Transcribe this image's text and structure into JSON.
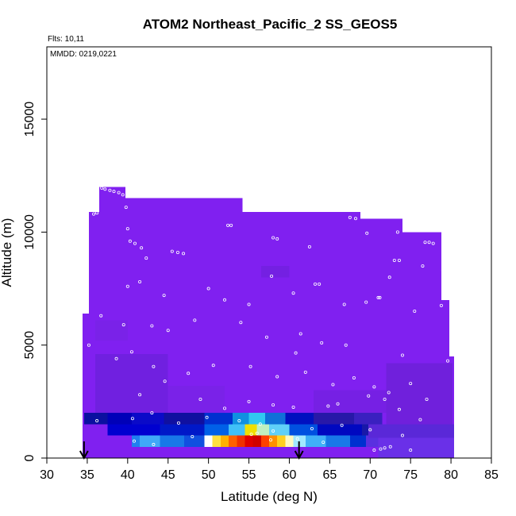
{
  "chart_data": {
    "type": "heatmap",
    "title": "ATOM2 Northeast_Pacific_2 SS_GEOS5",
    "flights_note": "Flts: 10,11",
    "dates_note": "MMDD: 0219,0221",
    "xlabel": "Latitude (deg N)",
    "ylabel": "Altitude (m)",
    "xlim": [
      30,
      85
    ],
    "ylim": [
      0,
      18200
    ],
    "x_ticks": [
      30,
      35,
      40,
      45,
      50,
      55,
      60,
      65,
      70,
      75,
      80,
      85
    ],
    "y_ticks": [
      0,
      5000,
      10000,
      15000
    ],
    "x_tick_labels": [
      "30",
      "35",
      "40",
      "45",
      "50",
      "55",
      "60",
      "65",
      "70",
      "75",
      "80",
      "85"
    ],
    "y_tick_labels": [
      "0",
      "5000",
      "10000",
      "15000"
    ],
    "arrow_latitudes": [
      34.6,
      61.2
    ],
    "background_color": "#8020f0",
    "domain_columns": [
      {
        "x0": 34.4,
        "x1": 35.2,
        "top": 6400
      },
      {
        "x0": 35.2,
        "x1": 36.5,
        "top": 10900
      },
      {
        "x0": 36.5,
        "x1": 39.7,
        "top": 12000
      },
      {
        "x0": 39.7,
        "x1": 54.2,
        "top": 11500
      },
      {
        "x0": 54.2,
        "x1": 68.8,
        "top": 10900
      },
      {
        "x0": 68.8,
        "x1": 74.0,
        "top": 10600
      },
      {
        "x0": 74.0,
        "x1": 78.8,
        "top": 10000
      },
      {
        "x0": 78.8,
        "x1": 79.8,
        "top": 7000
      },
      {
        "x0": 79.8,
        "x1": 80.4,
        "top": 4500
      }
    ],
    "low_layer_cells": [
      {
        "x0": 34.6,
        "x1": 37.5,
        "y0": 1500,
        "y1": 2000,
        "color": "#0a10a0"
      },
      {
        "x0": 37.5,
        "x1": 40.5,
        "y0": 1500,
        "y1": 2000,
        "color": "#0000b8"
      },
      {
        "x0": 40.5,
        "x1": 44.5,
        "y0": 1500,
        "y1": 2000,
        "color": "#0a0ac8"
      },
      {
        "x0": 44.5,
        "x1": 49.5,
        "y0": 1500,
        "y1": 2000,
        "color": "#1010a0"
      },
      {
        "x0": 49.5,
        "x1": 53.0,
        "y0": 1500,
        "y1": 2000,
        "color": "#0030d0"
      },
      {
        "x0": 53.0,
        "x1": 55.0,
        "y0": 1500,
        "y1": 2000,
        "color": "#1090e0"
      },
      {
        "x0": 55.0,
        "x1": 57.0,
        "y0": 1500,
        "y1": 2000,
        "color": "#30c8f0"
      },
      {
        "x0": 57.0,
        "x1": 59.5,
        "y0": 1500,
        "y1": 2000,
        "color": "#1070d8"
      },
      {
        "x0": 59.5,
        "x1": 63.0,
        "y0": 1500,
        "y1": 2000,
        "color": "#0010c0"
      },
      {
        "x0": 63.0,
        "x1": 68.0,
        "y0": 1500,
        "y1": 2000,
        "color": "#2818a8"
      },
      {
        "x0": 68.0,
        "x1": 71.5,
        "y0": 1500,
        "y1": 2000,
        "color": "#3a20c0"
      },
      {
        "x0": 37.5,
        "x1": 44.0,
        "y0": 1000,
        "y1": 1500,
        "color": "#0000d0"
      },
      {
        "x0": 44.0,
        "x1": 49.5,
        "y0": 1000,
        "y1": 1500,
        "color": "#0018c8"
      },
      {
        "x0": 49.5,
        "x1": 52.5,
        "y0": 1000,
        "y1": 1500,
        "color": "#0060e8"
      },
      {
        "x0": 52.5,
        "x1": 54.5,
        "y0": 1000,
        "y1": 1500,
        "color": "#40c0f8"
      },
      {
        "x0": 54.5,
        "x1": 56.0,
        "y0": 1000,
        "y1": 1500,
        "color": "#f0e000"
      },
      {
        "x0": 56.0,
        "x1": 57.5,
        "y0": 1000,
        "y1": 1500,
        "color": "#c0f0c0"
      },
      {
        "x0": 57.5,
        "x1": 60.0,
        "y0": 1000,
        "y1": 1500,
        "color": "#60d0f8"
      },
      {
        "x0": 60.0,
        "x1": 63.5,
        "y0": 1000,
        "y1": 1500,
        "color": "#0050e0"
      },
      {
        "x0": 63.5,
        "x1": 69.0,
        "y0": 1000,
        "y1": 1500,
        "color": "#0008c0"
      },
      {
        "x0": 69.0,
        "x1": 72.0,
        "y0": 1000,
        "y1": 1500,
        "color": "#1818a8"
      },
      {
        "x0": 40.5,
        "x1": 41.5,
        "y0": 500,
        "y1": 1000,
        "color": "#2080f0"
      },
      {
        "x0": 41.5,
        "x1": 44.0,
        "y0": 500,
        "y1": 1000,
        "color": "#40a8f8"
      },
      {
        "x0": 44.0,
        "x1": 47.0,
        "y0": 500,
        "y1": 1000,
        "color": "#1878e8"
      },
      {
        "x0": 47.0,
        "x1": 49.5,
        "y0": 500,
        "y1": 1000,
        "color": "#1050e0"
      },
      {
        "x0": 49.5,
        "x1": 50.5,
        "y0": 500,
        "y1": 1000,
        "color": "#ffffff"
      },
      {
        "x0": 50.5,
        "x1": 51.5,
        "y0": 500,
        "y1": 1000,
        "color": "#ffe040"
      },
      {
        "x0": 51.5,
        "x1": 52.5,
        "y0": 500,
        "y1": 1000,
        "color": "#ffb000"
      },
      {
        "x0": 52.5,
        "x1": 53.5,
        "y0": 500,
        "y1": 1000,
        "color": "#ff6000"
      },
      {
        "x0": 53.5,
        "x1": 54.5,
        "y0": 500,
        "y1": 1000,
        "color": "#f03000"
      },
      {
        "x0": 54.5,
        "x1": 55.5,
        "y0": 500,
        "y1": 1000,
        "color": "#e00000"
      },
      {
        "x0": 55.5,
        "x1": 56.5,
        "y0": 500,
        "y1": 1000,
        "color": "#d00000"
      },
      {
        "x0": 56.5,
        "x1": 57.5,
        "y0": 500,
        "y1": 1000,
        "color": "#ff4000"
      },
      {
        "x0": 57.5,
        "x1": 58.5,
        "y0": 500,
        "y1": 1000,
        "color": "#ff9000"
      },
      {
        "x0": 58.5,
        "x1": 59.5,
        "y0": 500,
        "y1": 1000,
        "color": "#ffd020"
      },
      {
        "x0": 59.5,
        "x1": 60.5,
        "y0": 500,
        "y1": 1000,
        "color": "#fff8c0"
      },
      {
        "x0": 60.5,
        "x1": 62.0,
        "y0": 500,
        "y1": 1000,
        "color": "#a0e8ff"
      },
      {
        "x0": 62.0,
        "x1": 64.5,
        "y0": 500,
        "y1": 1000,
        "color": "#40b0f8"
      },
      {
        "x0": 64.5,
        "x1": 67.5,
        "y0": 500,
        "y1": 1000,
        "color": "#1878e8"
      },
      {
        "x0": 67.5,
        "x1": 69.5,
        "y0": 500,
        "y1": 1000,
        "color": "#0030d0"
      },
      {
        "x0": 69.5,
        "x1": 71.0,
        "y0": 500,
        "y1": 1000,
        "color": "#5a30e0"
      },
      {
        "x0": 71.0,
        "x1": 80.4,
        "y0": 0,
        "y1": 900,
        "color": "#6a30e8"
      },
      {
        "x0": 69.8,
        "x1": 80.4,
        "y0": 900,
        "y1": 1500,
        "color": "#5a28d8"
      }
    ],
    "mid_shade_cells": [
      {
        "x0": 36.0,
        "x1": 45.0,
        "y0": 2000,
        "y1": 4600,
        "color": "#7020e0"
      },
      {
        "x0": 45.0,
        "x1": 52.0,
        "y0": 2000,
        "y1": 3200,
        "color": "#7a22e8"
      },
      {
        "x0": 63.0,
        "x1": 72.0,
        "y0": 2000,
        "y1": 3000,
        "color": "#7620e4"
      },
      {
        "x0": 72.0,
        "x1": 80.2,
        "y0": 1500,
        "y1": 4200,
        "color": "#7020dc"
      },
      {
        "x0": 36.0,
        "x1": 40.0,
        "y0": 5200,
        "y1": 6100,
        "color": "#7a22e8"
      },
      {
        "x0": 56.5,
        "x1": 60.0,
        "y0": 8000,
        "y1": 8500,
        "color": "#7420e2"
      }
    ],
    "sample_points": [
      [
        36.8,
        11950
      ],
      [
        37.2,
        11900
      ],
      [
        37.8,
        11850
      ],
      [
        38.3,
        11800
      ],
      [
        38.9,
        11750
      ],
      [
        39.4,
        11650
      ],
      [
        36.2,
        10850
      ],
      [
        35.8,
        10800
      ],
      [
        39.8,
        11100
      ],
      [
        40.0,
        10150
      ],
      [
        40.3,
        9600
      ],
      [
        40.9,
        9500
      ],
      [
        41.7,
        9300
      ],
      [
        42.3,
        8850
      ],
      [
        45.5,
        9150
      ],
      [
        46.2,
        9100
      ],
      [
        46.9,
        9050
      ],
      [
        52.4,
        10300
      ],
      [
        52.8,
        10300
      ],
      [
        58.0,
        9750
      ],
      [
        58.5,
        9700
      ],
      [
        62.5,
        9350
      ],
      [
        67.5,
        10650
      ],
      [
        68.2,
        10600
      ],
      [
        69.6,
        9950
      ],
      [
        73.4,
        10000
      ],
      [
        76.8,
        9550
      ],
      [
        77.3,
        9550
      ],
      [
        77.8,
        9500
      ],
      [
        73.0,
        8750
      ],
      [
        73.6,
        8750
      ],
      [
        72.4,
        8000
      ],
      [
        76.5,
        8500
      ],
      [
        79.0,
        8300
      ],
      [
        40.0,
        7600
      ],
      [
        41.5,
        7800
      ],
      [
        44.5,
        7200
      ],
      [
        50.0,
        7500
      ],
      [
        52.0,
        7000
      ],
      [
        55.0,
        6800
      ],
      [
        57.8,
        8050
      ],
      [
        60.5,
        7300
      ],
      [
        63.2,
        7700
      ],
      [
        63.7,
        7700
      ],
      [
        66.8,
        6800
      ],
      [
        69.5,
        6900
      ],
      [
        71.0,
        7100
      ],
      [
        71.2,
        7100
      ],
      [
        75.5,
        6500
      ],
      [
        78.8,
        6750
      ],
      [
        36.7,
        6300
      ],
      [
        39.5,
        5900
      ],
      [
        43.0,
        5850
      ],
      [
        45.0,
        5650
      ],
      [
        48.3,
        6100
      ],
      [
        54.0,
        6000
      ],
      [
        57.2,
        5350
      ],
      [
        61.4,
        5500
      ],
      [
        64.0,
        5100
      ],
      [
        67.0,
        5000
      ],
      [
        74.0,
        4550
      ],
      [
        79.6,
        4300
      ],
      [
        35.2,
        5000
      ],
      [
        38.6,
        4400
      ],
      [
        40.5,
        4700
      ],
      [
        43.2,
        4050
      ],
      [
        47.5,
        3750
      ],
      [
        50.6,
        4100
      ],
      [
        55.2,
        4050
      ],
      [
        58.5,
        3600
      ],
      [
        60.8,
        4650
      ],
      [
        62.0,
        3800
      ],
      [
        65.4,
        3250
      ],
      [
        68.0,
        3550
      ],
      [
        70.5,
        3150
      ],
      [
        72.3,
        2900
      ],
      [
        75.0,
        3300
      ],
      [
        77.0,
        2600
      ],
      [
        41.5,
        2800
      ],
      [
        44.6,
        3400
      ],
      [
        49.0,
        2600
      ],
      [
        52.0,
        2200
      ],
      [
        55.0,
        2500
      ],
      [
        58.0,
        2350
      ],
      [
        60.5,
        2250
      ],
      [
        64.8,
        2300
      ],
      [
        66.0,
        2400
      ],
      [
        69.8,
        2750
      ],
      [
        71.8,
        2600
      ],
      [
        73.6,
        2150
      ],
      [
        36.2,
        1650
      ],
      [
        40.6,
        1750
      ],
      [
        43.0,
        2000
      ],
      [
        46.3,
        1550
      ],
      [
        49.8,
        1800
      ],
      [
        53.8,
        1650
      ],
      [
        56.4,
        1500
      ],
      [
        58.0,
        1200
      ],
      [
        62.8,
        1300
      ],
      [
        66.5,
        1450
      ],
      [
        70.0,
        1250
      ],
      [
        74.0,
        1000
      ],
      [
        76.2,
        1700
      ],
      [
        40.8,
        750
      ],
      [
        43.2,
        600
      ],
      [
        48.0,
        950
      ],
      [
        55.3,
        1050
      ],
      [
        56.0,
        1100
      ],
      [
        57.7,
        800
      ],
      [
        61.0,
        850
      ],
      [
        64.2,
        700
      ],
      [
        70.5,
        350
      ],
      [
        71.3,
        400
      ],
      [
        71.8,
        450
      ],
      [
        72.5,
        500
      ],
      [
        75.0,
        350
      ]
    ]
  }
}
